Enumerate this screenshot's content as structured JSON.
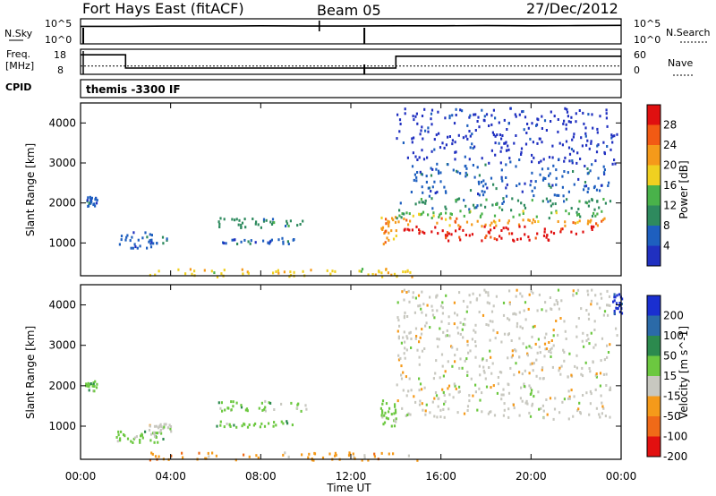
{
  "header": {
    "station": "Fort Hays East (fitACF)",
    "beam": "Beam 05",
    "date": "27/Dec/2012"
  },
  "top_panels": {
    "nsky_label": "N.Sky",
    "nsky_ticks": [
      "10^5",
      "10^0"
    ],
    "nsearch_label": "N.Search",
    "nsearch_ticks": [
      "10^5",
      "10^0"
    ],
    "freq_label": "Freq.",
    "freq_unit": "[MHz]",
    "freq_ticks": [
      "18",
      "8"
    ],
    "nave_label": "Nave",
    "nave_ticks": [
      "60",
      "0"
    ],
    "cpid_label": "CPID",
    "cpid_value": "themis -3300 IF"
  },
  "colors": {
    "power": [
      "#2030c0",
      "#1e5fbf",
      "#2e8a5e",
      "#49b24a",
      "#f0d020",
      "#f59a1a",
      "#f25a14",
      "#e01010"
    ],
    "velocity": [
      "#1a2fd0",
      "#2b6aa8",
      "#2c8a4e",
      "#6cc840",
      "#c8c8c0",
      "#f59a1a",
      "#f06a18",
      "#e21010"
    ]
  },
  "chart_data": [
    {
      "type": "line",
      "panel": "N.Sky / N.Search",
      "x_range_hours": [
        0,
        24
      ],
      "y_scale": "log",
      "ylim": [
        "10^0",
        "10^5"
      ],
      "series": [
        {
          "name": "N.Sky",
          "x": [
            0,
            2,
            4,
            6,
            8,
            10,
            12,
            14,
            16,
            18,
            20,
            22,
            24
          ],
          "y_log10": [
            3.5,
            3.5,
            3.55,
            3.55,
            3.6,
            3.55,
            3.55,
            3.6,
            3.6,
            3.65,
            3.6,
            3.65,
            3.7
          ]
        }
      ]
    },
    {
      "type": "line",
      "panel": "Freq. / Nave",
      "x_range_hours": [
        0,
        24
      ],
      "ylim_freq_mhz": [
        8,
        18
      ],
      "ylim_nave": [
        0,
        60
      ],
      "series": [
        {
          "name": "Freq.",
          "x": [
            0,
            2,
            2,
            14,
            14,
            24
          ],
          "y": [
            15.8,
            15.8,
            10.5,
            10.5,
            15.2,
            15.2
          ]
        },
        {
          "name": "Nave",
          "x": [
            0,
            24
          ],
          "y": [
            20,
            20
          ]
        }
      ]
    },
    {
      "type": "heatmap",
      "panel": "Power",
      "xlabel": "Time UT",
      "ylabel": "Slant Range [km]",
      "x_ticks": [
        "00:00",
        "04:00",
        "08:00",
        "12:00",
        "16:00",
        "20:00",
        "00:00"
      ],
      "y_ticks": [
        "1000",
        "2000",
        "3000",
        "4000"
      ],
      "xlim_hours": [
        0,
        24
      ],
      "ylim_km": [
        180,
        4500
      ],
      "colorbar_label": "Power [dB]",
      "colorbar_ticks": [
        "4",
        "8",
        "12",
        "16",
        "20",
        "24",
        "28"
      ],
      "regions": [
        {
          "t0": 0.2,
          "t1": 0.7,
          "r0": 1900,
          "r1": 2200,
          "level": 1
        },
        {
          "t0": 1.5,
          "t1": 3.8,
          "r0": 900,
          "r1": 1300,
          "level": 1
        },
        {
          "t0": 6.0,
          "t1": 10.0,
          "r0": 1400,
          "r1": 1650,
          "level": 2
        },
        {
          "t0": 6.0,
          "t1": 9.5,
          "r0": 1000,
          "r1": 1150,
          "level": 1
        },
        {
          "t0": 13.3,
          "t1": 14.0,
          "r0": 1000,
          "r1": 1700,
          "level": 5
        },
        {
          "t0": 14.0,
          "t1": 23.5,
          "r0": 1850,
          "r1": 2150,
          "level": 2
        },
        {
          "t0": 14.0,
          "t1": 23.5,
          "r0": 1650,
          "r1": 1850,
          "level": 3
        },
        {
          "t0": 14.0,
          "t1": 23.5,
          "r0": 1450,
          "r1": 1650,
          "level": 5
        },
        {
          "t0": 14.3,
          "t1": 23.0,
          "r0": 1250,
          "r1": 1450,
          "level": 7
        },
        {
          "t0": 16.0,
          "t1": 21.0,
          "r0": 1080,
          "r1": 1250,
          "level": 7
        },
        {
          "t0": 14.5,
          "t1": 23.5,
          "r0": 2200,
          "r1": 3000,
          "level": 1
        },
        {
          "t0": 14.0,
          "t1": 23.8,
          "r0": 3000,
          "r1": 4400,
          "level": 0
        },
        {
          "t0": 3.0,
          "t1": 15.0,
          "r0": 180,
          "r1": 380,
          "level": 4
        }
      ]
    },
    {
      "type": "heatmap",
      "panel": "Velocity",
      "xlabel": "Time UT",
      "ylabel": "Slant Range [km]",
      "x_ticks": [
        "00:00",
        "04:00",
        "08:00",
        "12:00",
        "16:00",
        "20:00",
        "00:00"
      ],
      "y_ticks": [
        "1000",
        "2000",
        "3000",
        "4000"
      ],
      "xlim_hours": [
        0,
        24
      ],
      "ylim_km": [
        180,
        4500
      ],
      "colorbar_label": "Velocity [m s^-1]",
      "colorbar_ticks": [
        "200",
        "100",
        "50",
        "15",
        "-15",
        "-50",
        "-100",
        "-200"
      ],
      "regions": [
        {
          "t0": 0.2,
          "t1": 0.7,
          "r0": 1900,
          "r1": 2200,
          "level": 3
        },
        {
          "t0": 1.5,
          "t1": 3.8,
          "r0": 600,
          "r1": 900,
          "level": 3
        },
        {
          "t0": 3.0,
          "t1": 4.0,
          "r0": 800,
          "r1": 1100,
          "level": 4
        },
        {
          "t0": 6.0,
          "t1": 10.0,
          "r0": 1400,
          "r1": 1650,
          "level": 3
        },
        {
          "t0": 6.0,
          "t1": 9.5,
          "r0": 1000,
          "r1": 1150,
          "level": 3
        },
        {
          "t0": 13.3,
          "t1": 14.0,
          "r0": 1000,
          "r1": 1700,
          "level": 3
        },
        {
          "t0": 14.0,
          "t1": 23.5,
          "r0": 1200,
          "r1": 2100,
          "level": 4
        },
        {
          "t0": 14.0,
          "t1": 23.8,
          "r0": 2200,
          "r1": 4400,
          "level": 4
        },
        {
          "t0": 3.0,
          "t1": 15.0,
          "r0": 180,
          "r1": 380,
          "level": 5
        },
        {
          "t0": 23.6,
          "t1": 24.0,
          "r0": 3800,
          "r1": 4300,
          "level": 0
        }
      ]
    }
  ]
}
